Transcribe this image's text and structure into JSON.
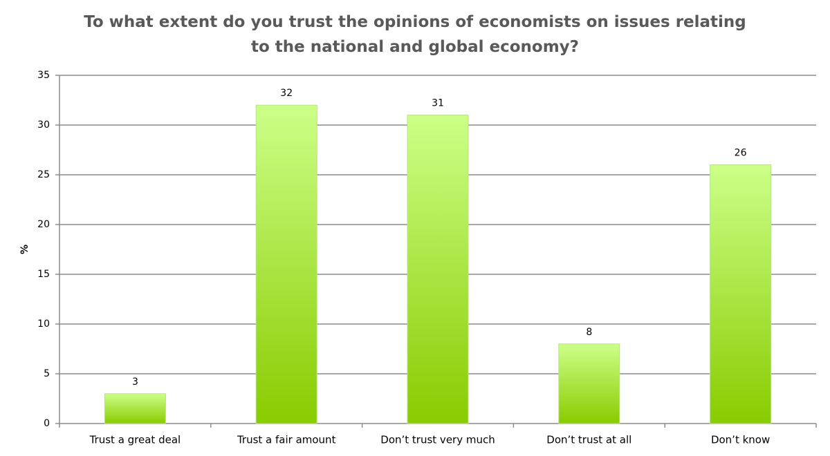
{
  "chart_data": {
    "type": "bar",
    "title": "To what extent do you trust the opinions of economists on issues relating to the national and global economy?",
    "y_label": "%",
    "categories": [
      "Trust a great deal",
      "Trust a fair amount",
      "Don’t trust very much",
      "Don’t trust at all",
      "Don’t know"
    ],
    "values": [
      3,
      32,
      31,
      8,
      26
    ],
    "color": [
      "#ccff88",
      "#88cc00"
    ],
    "ylim": [
      0,
      35
    ],
    "yticks": [
      0,
      5,
      10,
      15,
      20,
      25,
      30,
      35
    ],
    "grid": true
  }
}
